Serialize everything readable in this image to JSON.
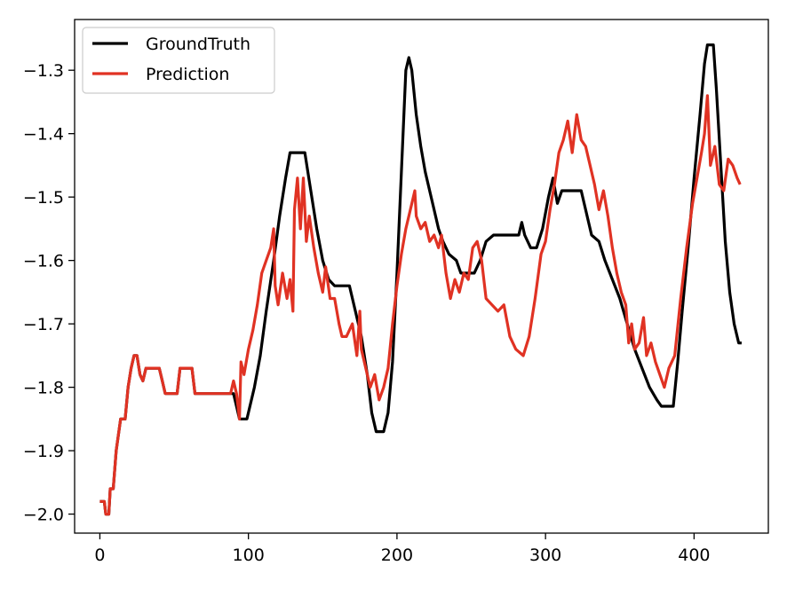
{
  "chart_data": {
    "type": "line",
    "title": "",
    "xlabel": "",
    "ylabel": "",
    "xlim": [
      -17,
      450
    ],
    "ylim": [
      -2.03,
      -1.22
    ],
    "grid": false,
    "legend_position": "top-left",
    "x_ticks": [
      0,
      100,
      200,
      300,
      400
    ],
    "x_tick_labels": [
      "0",
      "100",
      "200",
      "300",
      "400"
    ],
    "y_ticks": [
      -1.3,
      -1.4,
      -1.5,
      -1.6,
      -1.7,
      -1.8,
      -1.9,
      -2.0
    ],
    "y_tick_labels": [
      "−1.3",
      "−1.4",
      "−1.5",
      "−1.6",
      "−1.7",
      "−1.8",
      "−1.9",
      "−2.0"
    ],
    "series": [
      {
        "name": "GroundTruth",
        "color": "#000000",
        "points": [
          [
            0,
            -1.98
          ],
          [
            3,
            -1.98
          ],
          [
            4,
            -2.0
          ],
          [
            6,
            -2.0
          ],
          [
            7,
            -1.96
          ],
          [
            9,
            -1.96
          ],
          [
            11,
            -1.9
          ],
          [
            14,
            -1.85
          ],
          [
            17,
            -1.85
          ],
          [
            19,
            -1.8
          ],
          [
            21,
            -1.77
          ],
          [
            23,
            -1.75
          ],
          [
            25,
            -1.75
          ],
          [
            27,
            -1.78
          ],
          [
            29,
            -1.79
          ],
          [
            31,
            -1.77
          ],
          [
            40,
            -1.77
          ],
          [
            42,
            -1.79
          ],
          [
            44,
            -1.81
          ],
          [
            52,
            -1.81
          ],
          [
            54,
            -1.77
          ],
          [
            62,
            -1.77
          ],
          [
            64,
            -1.81
          ],
          [
            90,
            -1.81
          ],
          [
            94,
            -1.85
          ],
          [
            99,
            -1.85
          ],
          [
            104,
            -1.8
          ],
          [
            108,
            -1.75
          ],
          [
            112,
            -1.68
          ],
          [
            117,
            -1.6
          ],
          [
            121,
            -1.53
          ],
          [
            125,
            -1.47
          ],
          [
            128,
            -1.43
          ],
          [
            138,
            -1.43
          ],
          [
            142,
            -1.49
          ],
          [
            146,
            -1.55
          ],
          [
            150,
            -1.6
          ],
          [
            154,
            -1.63
          ],
          [
            158,
            -1.64
          ],
          [
            168,
            -1.64
          ],
          [
            172,
            -1.68
          ],
          [
            176,
            -1.72
          ],
          [
            180,
            -1.78
          ],
          [
            183,
            -1.84
          ],
          [
            186,
            -1.87
          ],
          [
            191,
            -1.87
          ],
          [
            194,
            -1.84
          ],
          [
            197,
            -1.76
          ],
          [
            200,
            -1.62
          ],
          [
            203,
            -1.46
          ],
          [
            206,
            -1.3
          ],
          [
            208,
            -1.28
          ],
          [
            210,
            -1.3
          ],
          [
            213,
            -1.37
          ],
          [
            216,
            -1.42
          ],
          [
            219,
            -1.46
          ],
          [
            222,
            -1.49
          ],
          [
            225,
            -1.52
          ],
          [
            228,
            -1.55
          ],
          [
            231,
            -1.57
          ],
          [
            235,
            -1.59
          ],
          [
            240,
            -1.6
          ],
          [
            243,
            -1.62
          ],
          [
            252,
            -1.62
          ],
          [
            256,
            -1.6
          ],
          [
            260,
            -1.57
          ],
          [
            265,
            -1.56
          ],
          [
            282,
            -1.56
          ],
          [
            284,
            -1.54
          ],
          [
            286,
            -1.56
          ],
          [
            290,
            -1.58
          ],
          [
            294,
            -1.58
          ],
          [
            298,
            -1.55
          ],
          [
            302,
            -1.5
          ],
          [
            305,
            -1.47
          ],
          [
            308,
            -1.51
          ],
          [
            311,
            -1.49
          ],
          [
            324,
            -1.49
          ],
          [
            327,
            -1.52
          ],
          [
            331,
            -1.56
          ],
          [
            336,
            -1.57
          ],
          [
            340,
            -1.6
          ],
          [
            345,
            -1.63
          ],
          [
            350,
            -1.66
          ],
          [
            355,
            -1.7
          ],
          [
            360,
            -1.74
          ],
          [
            365,
            -1.77
          ],
          [
            370,
            -1.8
          ],
          [
            375,
            -1.82
          ],
          [
            378,
            -1.83
          ],
          [
            386,
            -1.83
          ],
          [
            389,
            -1.76
          ],
          [
            392,
            -1.68
          ],
          [
            396,
            -1.58
          ],
          [
            400,
            -1.47
          ],
          [
            404,
            -1.37
          ],
          [
            407,
            -1.29
          ],
          [
            409,
            -1.26
          ],
          [
            413,
            -1.26
          ],
          [
            415,
            -1.33
          ],
          [
            418,
            -1.45
          ],
          [
            421,
            -1.57
          ],
          [
            424,
            -1.65
          ],
          [
            427,
            -1.7
          ],
          [
            430,
            -1.73
          ],
          [
            432,
            -1.73
          ]
        ]
      },
      {
        "name": "Prediction",
        "color": "#e03223",
        "points": [
          [
            0,
            -1.98
          ],
          [
            3,
            -1.98
          ],
          [
            4,
            -2.0
          ],
          [
            6,
            -2.0
          ],
          [
            7,
            -1.96
          ],
          [
            9,
            -1.96
          ],
          [
            11,
            -1.9
          ],
          [
            14,
            -1.85
          ],
          [
            17,
            -1.85
          ],
          [
            19,
            -1.8
          ],
          [
            21,
            -1.77
          ],
          [
            23,
            -1.75
          ],
          [
            25,
            -1.75
          ],
          [
            27,
            -1.78
          ],
          [
            29,
            -1.79
          ],
          [
            31,
            -1.77
          ],
          [
            40,
            -1.77
          ],
          [
            42,
            -1.79
          ],
          [
            44,
            -1.81
          ],
          [
            52,
            -1.81
          ],
          [
            54,
            -1.77
          ],
          [
            62,
            -1.77
          ],
          [
            64,
            -1.81
          ],
          [
            88,
            -1.81
          ],
          [
            90,
            -1.79
          ],
          [
            92,
            -1.81
          ],
          [
            94,
            -1.85
          ],
          [
            95,
            -1.76
          ],
          [
            97,
            -1.78
          ],
          [
            100,
            -1.74
          ],
          [
            103,
            -1.71
          ],
          [
            106,
            -1.67
          ],
          [
            109,
            -1.62
          ],
          [
            112,
            -1.6
          ],
          [
            115,
            -1.58
          ],
          [
            117,
            -1.55
          ],
          [
            118,
            -1.64
          ],
          [
            120,
            -1.67
          ],
          [
            123,
            -1.62
          ],
          [
            126,
            -1.66
          ],
          [
            128,
            -1.63
          ],
          [
            130,
            -1.68
          ],
          [
            131,
            -1.52
          ],
          [
            133,
            -1.47
          ],
          [
            135,
            -1.55
          ],
          [
            137,
            -1.47
          ],
          [
            139,
            -1.57
          ],
          [
            141,
            -1.53
          ],
          [
            144,
            -1.58
          ],
          [
            147,
            -1.62
          ],
          [
            150,
            -1.65
          ],
          [
            152,
            -1.61
          ],
          [
            155,
            -1.66
          ],
          [
            158,
            -1.66
          ],
          [
            161,
            -1.7
          ],
          [
            163,
            -1.72
          ],
          [
            166,
            -1.72
          ],
          [
            170,
            -1.7
          ],
          [
            173,
            -1.75
          ],
          [
            175,
            -1.68
          ],
          [
            176,
            -1.74
          ],
          [
            179,
            -1.77
          ],
          [
            182,
            -1.8
          ],
          [
            185,
            -1.78
          ],
          [
            188,
            -1.82
          ],
          [
            191,
            -1.8
          ],
          [
            194,
            -1.77
          ],
          [
            197,
            -1.7
          ],
          [
            200,
            -1.64
          ],
          [
            203,
            -1.59
          ],
          [
            206,
            -1.55
          ],
          [
            209,
            -1.52
          ],
          [
            212,
            -1.49
          ],
          [
            213,
            -1.53
          ],
          [
            216,
            -1.55
          ],
          [
            219,
            -1.54
          ],
          [
            222,
            -1.57
          ],
          [
            225,
            -1.56
          ],
          [
            228,
            -1.58
          ],
          [
            230,
            -1.56
          ],
          [
            233,
            -1.62
          ],
          [
            236,
            -1.66
          ],
          [
            239,
            -1.63
          ],
          [
            242,
            -1.65
          ],
          [
            245,
            -1.62
          ],
          [
            248,
            -1.63
          ],
          [
            251,
            -1.58
          ],
          [
            254,
            -1.57
          ],
          [
            257,
            -1.6
          ],
          [
            260,
            -1.66
          ],
          [
            264,
            -1.67
          ],
          [
            268,
            -1.68
          ],
          [
            272,
            -1.67
          ],
          [
            276,
            -1.72
          ],
          [
            280,
            -1.74
          ],
          [
            285,
            -1.75
          ],
          [
            289,
            -1.72
          ],
          [
            293,
            -1.66
          ],
          [
            297,
            -1.59
          ],
          [
            300,
            -1.57
          ],
          [
            303,
            -1.52
          ],
          [
            306,
            -1.48
          ],
          [
            309,
            -1.43
          ],
          [
            312,
            -1.41
          ],
          [
            315,
            -1.38
          ],
          [
            318,
            -1.43
          ],
          [
            321,
            -1.37
          ],
          [
            324,
            -1.41
          ],
          [
            327,
            -1.42
          ],
          [
            330,
            -1.45
          ],
          [
            333,
            -1.48
          ],
          [
            336,
            -1.52
          ],
          [
            339,
            -1.49
          ],
          [
            342,
            -1.53
          ],
          [
            345,
            -1.58
          ],
          [
            348,
            -1.62
          ],
          [
            351,
            -1.65
          ],
          [
            354,
            -1.67
          ],
          [
            356,
            -1.73
          ],
          [
            358,
            -1.7
          ],
          [
            360,
            -1.74
          ],
          [
            363,
            -1.73
          ],
          [
            366,
            -1.69
          ],
          [
            368,
            -1.75
          ],
          [
            371,
            -1.73
          ],
          [
            374,
            -1.76
          ],
          [
            377,
            -1.78
          ],
          [
            380,
            -1.8
          ],
          [
            383,
            -1.77
          ],
          [
            387,
            -1.75
          ],
          [
            391,
            -1.66
          ],
          [
            395,
            -1.58
          ],
          [
            399,
            -1.51
          ],
          [
            402,
            -1.47
          ],
          [
            405,
            -1.43
          ],
          [
            407,
            -1.4
          ],
          [
            409,
            -1.34
          ],
          [
            411,
            -1.45
          ],
          [
            414,
            -1.42
          ],
          [
            417,
            -1.48
          ],
          [
            420,
            -1.49
          ],
          [
            423,
            -1.44
          ],
          [
            426,
            -1.45
          ],
          [
            429,
            -1.47
          ],
          [
            431,
            -1.48
          ]
        ]
      }
    ]
  }
}
